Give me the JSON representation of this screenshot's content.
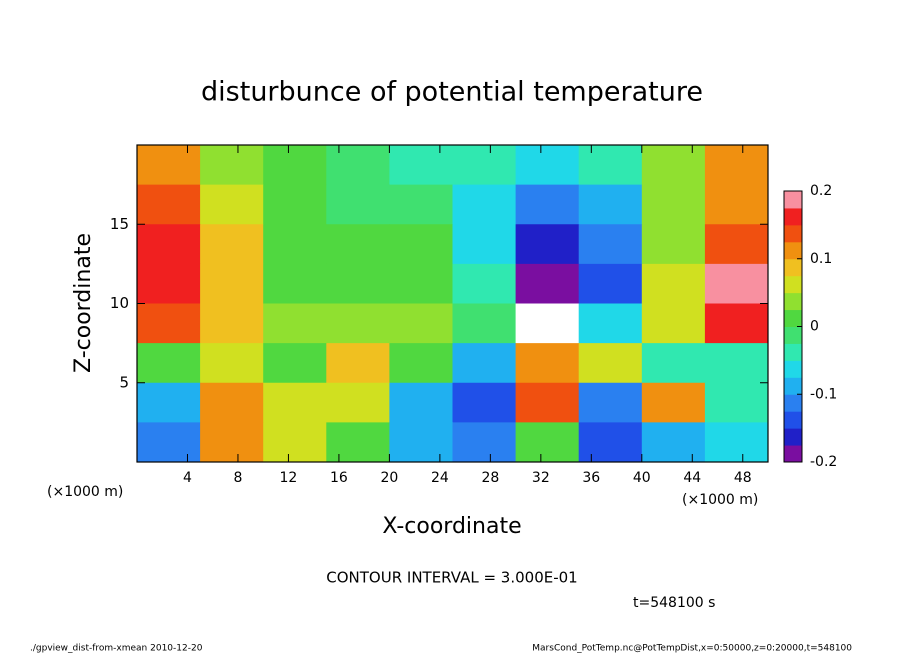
{
  "chart_data": {
    "type": "heatmap",
    "title": "disturbunce of potential temperature",
    "x_label": "X-coordinate",
    "y_label": "Z-coordinate",
    "x_unit_left": "(×1000 m)",
    "x_unit_right": "(×1000 m)",
    "contour_note": "CONTOUR INTERVAL = 3.000E-01",
    "time_note": "t=548100 s",
    "footer_left": "./gpview_dist-from-xmean  2010-12-20",
    "footer_right": "MarsCond_PotTemp.nc@PotTempDist,x=0:50000,z=0:20000,t=548100",
    "xlim": [
      0,
      50
    ],
    "ylim": [
      0,
      20
    ],
    "xticks": [
      4,
      8,
      12,
      16,
      20,
      24,
      28,
      32,
      36,
      40,
      44,
      48
    ],
    "yticks": [
      5,
      10,
      15
    ],
    "clim": [
      -0.2,
      0.2
    ],
    "cticks": [
      -0.2,
      -0.1,
      0,
      0.1,
      0.2
    ],
    "colormap": [
      "#7a0ea0",
      "#2020c8",
      "#2050e8",
      "#2a80f0",
      "#20b0f0",
      "#20d8e8",
      "#30e8b0",
      "#40e070",
      "#50d840",
      "#90e030",
      "#d0e020",
      "#f0c020",
      "#f09010",
      "#f05010",
      "#f02020",
      "#f890a0"
    ],
    "over_color": "#ffffff",
    "x": [
      2.5,
      7.5,
      12.5,
      17.5,
      22.5,
      27.5,
      32.5,
      37.5,
      42.5,
      47.5
    ],
    "y": [
      18.75,
      16.25,
      13.75,
      11.25,
      8.75,
      6.25,
      3.75,
      1.25
    ],
    "z": [
      [
        0.1,
        0.04,
        0.0,
        -0.02,
        -0.04,
        -0.04,
        -0.06,
        -0.04,
        0.03,
        0.1
      ],
      [
        0.14,
        0.06,
        0.0,
        -0.01,
        -0.02,
        -0.06,
        -0.12,
        -0.08,
        0.03,
        0.12
      ],
      [
        0.16,
        0.08,
        0.01,
        0.0,
        0.0,
        -0.06,
        -0.16,
        -0.12,
        0.03,
        0.14
      ],
      [
        0.16,
        0.08,
        0.02,
        0.01,
        0.01,
        -0.05,
        -0.19,
        -0.14,
        0.05,
        0.2
      ],
      [
        0.14,
        0.09,
        0.04,
        0.03,
        0.03,
        -0.02,
        0.25,
        -0.06,
        0.06,
        0.16
      ],
      [
        0.0,
        0.05,
        0.02,
        0.08,
        0.0,
        -0.1,
        0.1,
        0.05,
        -0.05,
        -0.05
      ],
      [
        -0.1,
        0.12,
        0.06,
        0.05,
        -0.08,
        -0.15,
        0.15,
        -0.12,
        0.1,
        -0.05
      ],
      [
        -0.12,
        0.1,
        0.05,
        0.02,
        -0.1,
        -0.12,
        0.0,
        -0.14,
        -0.1,
        -0.06
      ]
    ]
  }
}
